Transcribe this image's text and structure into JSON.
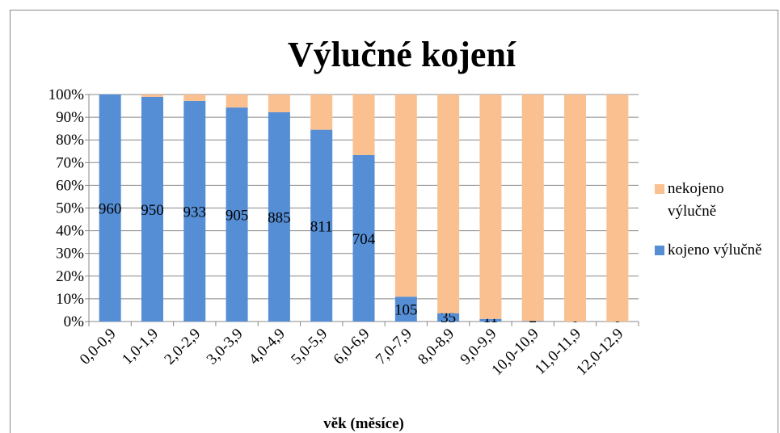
{
  "chart_data": {
    "type": "percent-stacked-bar",
    "title": "Výlučné kojení",
    "x_label": "věk (měsíce)",
    "categories": [
      "0,0-0,9",
      "1,0-1,9",
      "2,0-2,9",
      "3,0-3,9",
      "4,0-4,9",
      "5,0-5,9",
      "6,0-6,9",
      "7,0-7,9",
      "8,0-8,9",
      "9,0-9,9",
      "10,0-10,9",
      "11,0-11,9",
      "12,0-12,9"
    ],
    "series": [
      {
        "name": "kojeno výlučně",
        "color": "#558ed5",
        "values": [
          960,
          950,
          933,
          905,
          885,
          811,
          704,
          105,
          35,
          11,
          2,
          0,
          0
        ]
      },
      {
        "name": "nekojeno výlučně",
        "color": "#fac090",
        "values": [
          0,
          10,
          27,
          55,
          75,
          149,
          256,
          855,
          925,
          949,
          958,
          960,
          960
        ]
      }
    ],
    "ylim": [
      0,
      100
    ],
    "yticks": [
      {
        "value": 0,
        "label": "0%"
      },
      {
        "value": 10,
        "label": "10%"
      },
      {
        "value": 20,
        "label": "20%"
      },
      {
        "value": 30,
        "label": "30%"
      },
      {
        "value": 40,
        "label": "40%"
      },
      {
        "value": 50,
        "label": "50%"
      },
      {
        "value": 60,
        "label": "60%"
      },
      {
        "value": 70,
        "label": "70%"
      },
      {
        "value": 80,
        "label": "80%"
      },
      {
        "value": 90,
        "label": "90%"
      },
      {
        "value": 100,
        "label": "100%"
      }
    ],
    "grid": true,
    "legend": "right"
  }
}
